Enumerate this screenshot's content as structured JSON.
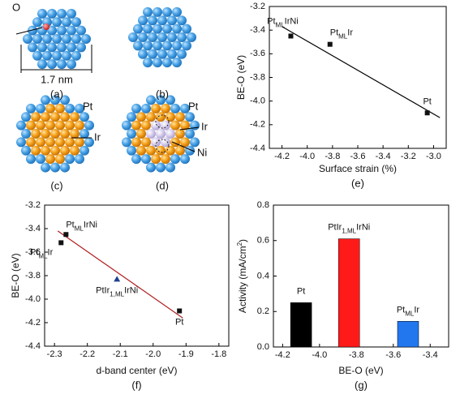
{
  "panels": [
    {
      "label": "(a)",
      "annotations": [
        "O",
        "1.7 nm"
      ]
    },
    {
      "label": "(b)",
      "annotations": []
    },
    {
      "label": "(c)",
      "annotations": [
        "Pt",
        "Ir"
      ]
    },
    {
      "label": "(d)",
      "annotations": [
        "Pt",
        "Ir",
        "Ni"
      ]
    }
  ],
  "chart_data": [
    {
      "type": "scatter",
      "panel_label": "(e)",
      "x_label": "Surface strain (%)",
      "y_label": [
        "BE-O (eV)"
      ],
      "x": [
        -4.13,
        -3.82,
        -3.05
      ],
      "values": [
        -3.45,
        -3.52,
        -4.1
      ],
      "point_labels": [
        [
          "Pt",
          "ML",
          "IrNi"
        ],
        [
          "Pt",
          "ML",
          "Ir"
        ],
        [
          "Pt",
          "",
          ""
        ]
      ],
      "markers": [
        "square",
        "square",
        "square"
      ],
      "colors": [
        "#111111",
        "#111111",
        "#111111"
      ],
      "fit_line": {
        "x": [
          -4.2,
          -2.95
        ],
        "y": [
          -3.37,
          -4.14
        ],
        "color": "#000000"
      },
      "xlim": [
        -4.3,
        -2.9
      ],
      "xticks": [
        -4.2,
        {
          "value": -4.0,
          "label": "-4.0"
        },
        -3.8,
        -3.6,
        -3.4,
        -3.2,
        {
          "value": -3.0,
          "label": "-3.0"
        }
      ],
      "ylim": [
        -4.4,
        -3.2
      ],
      "yticks": [
        -4.4,
        -4.2,
        {
          "value": -4.0,
          "label": "-4.0"
        },
        -3.8,
        -3.6,
        -3.4,
        -3.2
      ]
    },
    {
      "type": "scatter",
      "panel_label": "(f)",
      "x_label": "d-band center (eV)",
      "y_label": [
        "BE-O (eV)"
      ],
      "x": [
        -2.265,
        -2.28,
        -2.11,
        -1.92
      ],
      "values": [
        -3.45,
        -3.52,
        -3.83,
        -4.1
      ],
      "point_labels": [
        [
          "Pt",
          "ML",
          "IrNi"
        ],
        [
          "Pt",
          "ML",
          "Ir"
        ],
        [
          "PtIr",
          "1,ML",
          "IrNi"
        ],
        [
          "Pt",
          "",
          ""
        ]
      ],
      "markers": [
        "square",
        "square",
        "triangle",
        "square"
      ],
      "colors": [
        "#111111",
        "#111111",
        "#1f3f8f",
        "#111111"
      ],
      "fit_line": {
        "x": [
          -2.29,
          -1.91
        ],
        "y": [
          -3.42,
          -4.16
        ],
        "color": "#b02020"
      },
      "xlim": [
        -2.33,
        -1.77
      ],
      "xticks": [
        -2.3,
        -2.2,
        -2.1,
        {
          "value": -2.0,
          "label": "-2.0"
        },
        -1.9,
        -1.8
      ],
      "ylim": [
        -4.4,
        -3.2
      ],
      "yticks": [
        -4.4,
        -4.2,
        {
          "value": -4.0,
          "label": "-4.0"
        },
        -3.8,
        -3.6,
        -3.4,
        -3.2
      ]
    },
    {
      "type": "bar",
      "panel_label": "(g)",
      "x_label": "BE-O (eV)",
      "y_label": [
        "Activity (mA/cm",
        "2",
        ")"
      ],
      "x": [
        -4.1,
        -3.84,
        -3.52
      ],
      "values": [
        0.25,
        0.61,
        0.145
      ],
      "point_labels": [
        [
          "Pt",
          "",
          ""
        ],
        [
          "PtIr",
          "1,ML",
          "IrNi"
        ],
        [
          "Pt",
          "ML",
          "Ir"
        ]
      ],
      "colors": [
        "#000000",
        "#ff1a1a",
        "#2277ee"
      ],
      "xlim": [
        -4.25,
        -3.3
      ],
      "xticks": [
        -4.2,
        {
          "value": -4.0,
          "label": "-4.0"
        },
        -3.8,
        -3.6,
        -3.4
      ],
      "ylim": [
        0,
        0.8
      ],
      "yticks": [
        {
          "value": 0,
          "label": "0.0"
        },
        0.2,
        0.4,
        0.6,
        0.8
      ]
    }
  ]
}
